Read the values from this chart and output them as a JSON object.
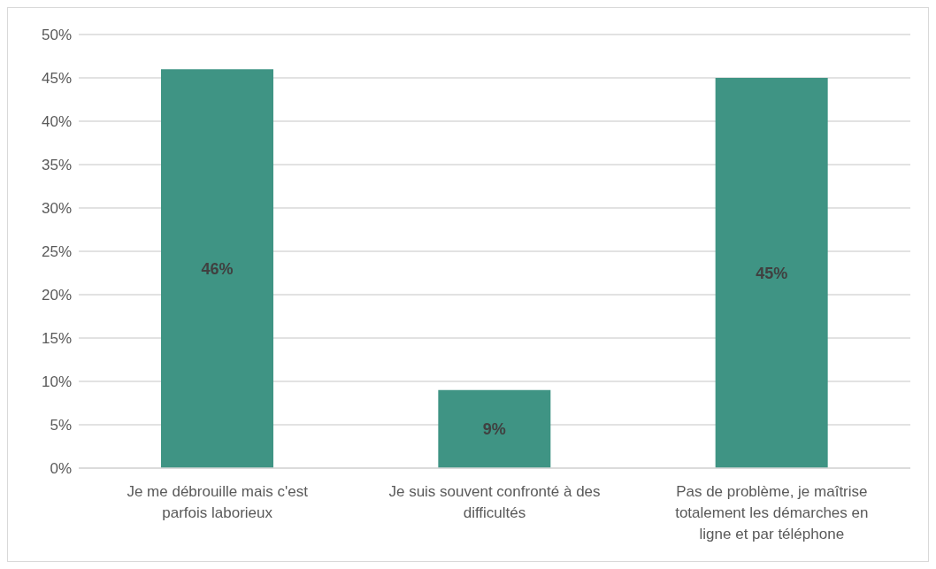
{
  "chart_data": {
    "type": "bar",
    "categories": [
      "Je me débrouille mais c'est parfois laborieux",
      "Je suis souvent confronté à des difficultés",
      "Pas de problème, je maîtrise totalement les démarches en ligne et par téléphone"
    ],
    "values": [
      46,
      9,
      45
    ],
    "value_labels": [
      "46%",
      "9%",
      "45%"
    ],
    "color": "#3f9484",
    "ylim": [
      0,
      50
    ],
    "yticks": [
      {
        "value": 0,
        "label": "0%"
      },
      {
        "value": 5,
        "label": "5%"
      },
      {
        "value": 10,
        "label": "10%"
      },
      {
        "value": 15,
        "label": "15%"
      },
      {
        "value": 20,
        "label": "20%"
      },
      {
        "value": 25,
        "label": "25%"
      },
      {
        "value": 30,
        "label": "30%"
      },
      {
        "value": 35,
        "label": "35%"
      },
      {
        "value": 40,
        "label": "40%"
      },
      {
        "value": 45,
        "label": "45%"
      },
      {
        "value": 50,
        "label": "50%"
      }
    ],
    "grid": "y"
  }
}
